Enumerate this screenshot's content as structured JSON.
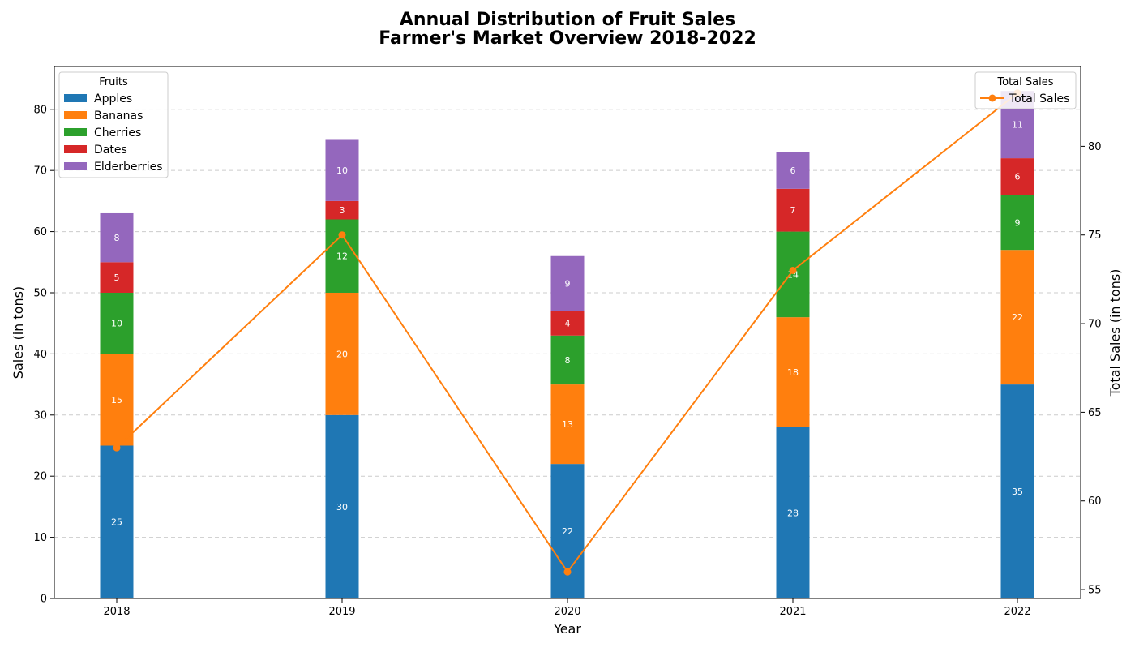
{
  "chart_data": {
    "type": "bar",
    "title_line1": "Annual Distribution of Fruit Sales",
    "title_line2": "Farmer's Market Overview 2018-2022",
    "xlabel": "Year",
    "ylabel": "Sales (in tons)",
    "ylabel_right": "Total Sales (in tons)",
    "categories": [
      "2018",
      "2019",
      "2020",
      "2021",
      "2022"
    ],
    "stacked": true,
    "ylim": [
      0,
      87
    ],
    "yticks": [
      0,
      10,
      20,
      30,
      40,
      50,
      60,
      70,
      80
    ],
    "y2lim": [
      54.5,
      84.5
    ],
    "y2ticks": [
      55,
      60,
      65,
      70,
      75,
      80
    ],
    "grid": "horizontal dashed",
    "legend_fruits": {
      "title": "Fruits",
      "placement": "top-left"
    },
    "legend_total": {
      "title": "Total Sales",
      "placement": "top-right"
    },
    "series": [
      {
        "name": "Apples",
        "color": "#1f77b4",
        "values": [
          25,
          30,
          22,
          28,
          35
        ]
      },
      {
        "name": "Bananas",
        "color": "#ff7f0e",
        "values": [
          15,
          20,
          13,
          18,
          22
        ]
      },
      {
        "name": "Cherries",
        "color": "#2ca02c",
        "values": [
          10,
          12,
          8,
          14,
          9
        ]
      },
      {
        "name": "Dates",
        "color": "#d62728",
        "values": [
          5,
          3,
          4,
          7,
          6
        ]
      },
      {
        "name": "Elderberries",
        "color": "#9467bd",
        "values": [
          8,
          10,
          9,
          6,
          11
        ]
      }
    ],
    "line_series": {
      "name": "Total Sales",
      "color": "#ff7f0e",
      "axis": "right",
      "values": [
        63,
        75,
        56,
        73,
        83
      ]
    }
  }
}
